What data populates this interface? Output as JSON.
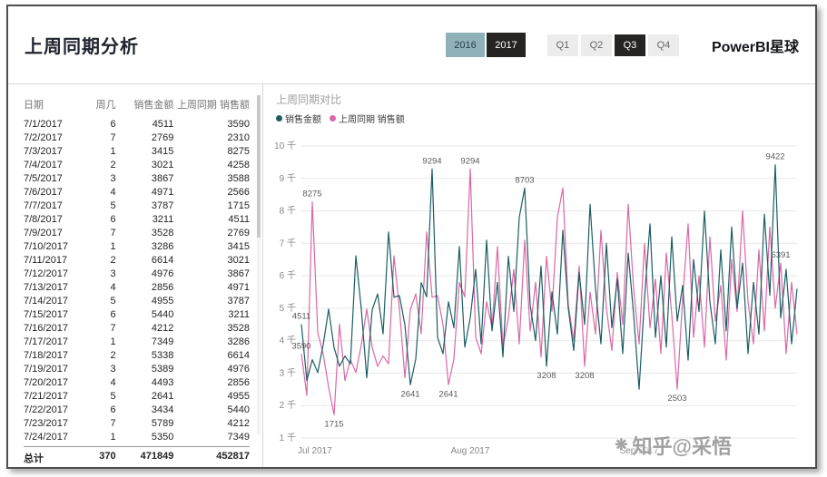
{
  "header": {
    "title": "上周同期分析",
    "brand": "PowerBI星球",
    "year_unselected_bg": "#8FB1B8",
    "selected_bg": "#252423",
    "year_buttons": [
      {
        "label": "2016",
        "selected": false
      },
      {
        "label": "2017",
        "selected": true
      }
    ],
    "quarter_buttons": [
      {
        "label": "Q1",
        "selected": false
      },
      {
        "label": "Q2",
        "selected": false
      },
      {
        "label": "Q3",
        "selected": true
      },
      {
        "label": "Q4",
        "selected": false
      }
    ]
  },
  "table": {
    "columns": [
      "日期",
      "周几",
      "销售金额",
      "上周同期 销售额"
    ],
    "rows": [
      [
        "7/1/2017",
        "6",
        "4511",
        "3590"
      ],
      [
        "7/2/2017",
        "7",
        "2769",
        "2310"
      ],
      [
        "7/3/2017",
        "1",
        "3415",
        "8275"
      ],
      [
        "7/4/2017",
        "2",
        "3021",
        "4258"
      ],
      [
        "7/5/2017",
        "3",
        "3867",
        "3588"
      ],
      [
        "7/6/2017",
        "4",
        "4971",
        "2566"
      ],
      [
        "7/7/2017",
        "5",
        "3787",
        "1715"
      ],
      [
        "7/8/2017",
        "6",
        "3211",
        "4511"
      ],
      [
        "7/9/2017",
        "7",
        "3528",
        "2769"
      ],
      [
        "7/10/2017",
        "1",
        "3286",
        "3415"
      ],
      [
        "7/11/2017",
        "2",
        "6614",
        "3021"
      ],
      [
        "7/12/2017",
        "3",
        "4976",
        "3867"
      ],
      [
        "7/13/2017",
        "4",
        "2856",
        "4971"
      ],
      [
        "7/14/2017",
        "5",
        "4955",
        "3787"
      ],
      [
        "7/15/2017",
        "6",
        "5440",
        "3211"
      ],
      [
        "7/16/2017",
        "7",
        "4212",
        "3528"
      ],
      [
        "7/17/2017",
        "1",
        "7349",
        "3286"
      ],
      [
        "7/18/2017",
        "2",
        "5338",
        "6614"
      ],
      [
        "7/19/2017",
        "3",
        "5389",
        "4976"
      ],
      [
        "7/20/2017",
        "4",
        "4493",
        "2856"
      ],
      [
        "7/21/2017",
        "5",
        "2641",
        "4955"
      ],
      [
        "7/22/2017",
        "6",
        "3434",
        "5440"
      ],
      [
        "7/23/2017",
        "7",
        "5789",
        "4212"
      ],
      [
        "7/24/2017",
        "1",
        "5350",
        "7349"
      ]
    ],
    "total": [
      "总计",
      "370",
      "471849",
      "452817"
    ]
  },
  "chart_data": {
    "type": "line",
    "title": "上周同期对比",
    "start_date": "7/1/2017",
    "ylim": [
      1000,
      10000
    ],
    "y_ticks": [
      "1 千",
      "2 千",
      "3 千",
      "4 千",
      "5 千",
      "6 千",
      "7 千",
      "8 千",
      "9 千",
      "10 千"
    ],
    "x_labels": [
      {
        "label": "Jul 2017",
        "index": 0
      },
      {
        "label": "Aug 2017",
        "index": 31
      },
      {
        "label": "Sep 2017",
        "index": 62
      }
    ],
    "series": [
      {
        "name": "销售金额",
        "color": "#1C5E63",
        "values": [
          4511,
          2769,
          3415,
          3021,
          3867,
          4971,
          3787,
          3211,
          3528,
          3286,
          6614,
          4976,
          2856,
          4955,
          5440,
          4212,
          7349,
          5338,
          5389,
          4493,
          2641,
          3434,
          5789,
          5350,
          9294,
          4100,
          3600,
          5200,
          4400,
          6900,
          3800,
          4700,
          6200,
          3900,
          7100,
          4300,
          5800,
          3500,
          6600,
          4900,
          7800,
          8703,
          5100,
          4000,
          6300,
          3208,
          5500,
          4200,
          7400,
          5000,
          3700,
          6100,
          4500,
          8200,
          5600,
          3900,
          7000,
          4400,
          5900,
          3600,
          6700,
          4800,
          2503,
          5300,
          7600,
          4100,
          6000,
          3800,
          7200,
          4600,
          5700,
          3400,
          6500,
          4900,
          8000,
          5200,
          3900,
          6800,
          4300,
          7500,
          5000,
          6391,
          3600,
          5800,
          4200,
          7900,
          5400,
          9422,
          4700,
          6200,
          3900,
          5600
        ]
      },
      {
        "name": "上周同期 销售额",
        "color": "#DB68A6",
        "values": [
          3590,
          2310,
          8275,
          4258,
          3588,
          2566,
          1715,
          4511,
          2769,
          3415,
          3021,
          3867,
          4971,
          3787,
          3211,
          3528,
          3286,
          6614,
          4976,
          2856,
          4955,
          5440,
          4212,
          7349,
          5338,
          5389,
          4493,
          2641,
          3434,
          5789,
          5350,
          9294,
          4100,
          3600,
          5200,
          4400,
          6900,
          3800,
          4700,
          6200,
          3900,
          7100,
          4300,
          5800,
          3500,
          6600,
          4900,
          7800,
          8703,
          5100,
          4000,
          6300,
          3208,
          5500,
          4200,
          7400,
          5000,
          3700,
          6100,
          4500,
          8200,
          5600,
          3900,
          7000,
          4400,
          5900,
          3600,
          6700,
          4800,
          2503,
          5300,
          7600,
          4100,
          6000,
          3800,
          7200,
          4600,
          5700,
          3400,
          6500,
          4900,
          8000,
          5200,
          3900,
          6800,
          4300,
          7500,
          5000,
          6391,
          3600,
          5800,
          4200
        ]
      }
    ],
    "data_labels": [
      {
        "series": 0,
        "index": 0,
        "text": "4511",
        "pos": "above"
      },
      {
        "series": 1,
        "index": 0,
        "text": "3590",
        "pos": "above"
      },
      {
        "series": 1,
        "index": 2,
        "text": "8275",
        "pos": "above"
      },
      {
        "series": 1,
        "index": 6,
        "text": "1715",
        "pos": "below"
      },
      {
        "series": 0,
        "index": 20,
        "text": "2641",
        "pos": "below"
      },
      {
        "series": 0,
        "index": 24,
        "text": "9294",
        "pos": "above"
      },
      {
        "series": 1,
        "index": 27,
        "text": "2641",
        "pos": "below"
      },
      {
        "series": 1,
        "index": 31,
        "text": "9294",
        "pos": "above"
      },
      {
        "series": 0,
        "index": 41,
        "text": "8703",
        "pos": "above"
      },
      {
        "series": 0,
        "index": 45,
        "text": "3208",
        "pos": "below"
      },
      {
        "series": 1,
        "index": 52,
        "text": "3208",
        "pos": "below"
      },
      {
        "series": 1,
        "index": 69,
        "text": "2503",
        "pos": "below"
      },
      {
        "series": 0,
        "index": 87,
        "text": "9422",
        "pos": "above"
      },
      {
        "series": 1,
        "index": 88,
        "text": "6391",
        "pos": "above"
      }
    ]
  },
  "watermark": {
    "text": "知乎@采悟"
  }
}
